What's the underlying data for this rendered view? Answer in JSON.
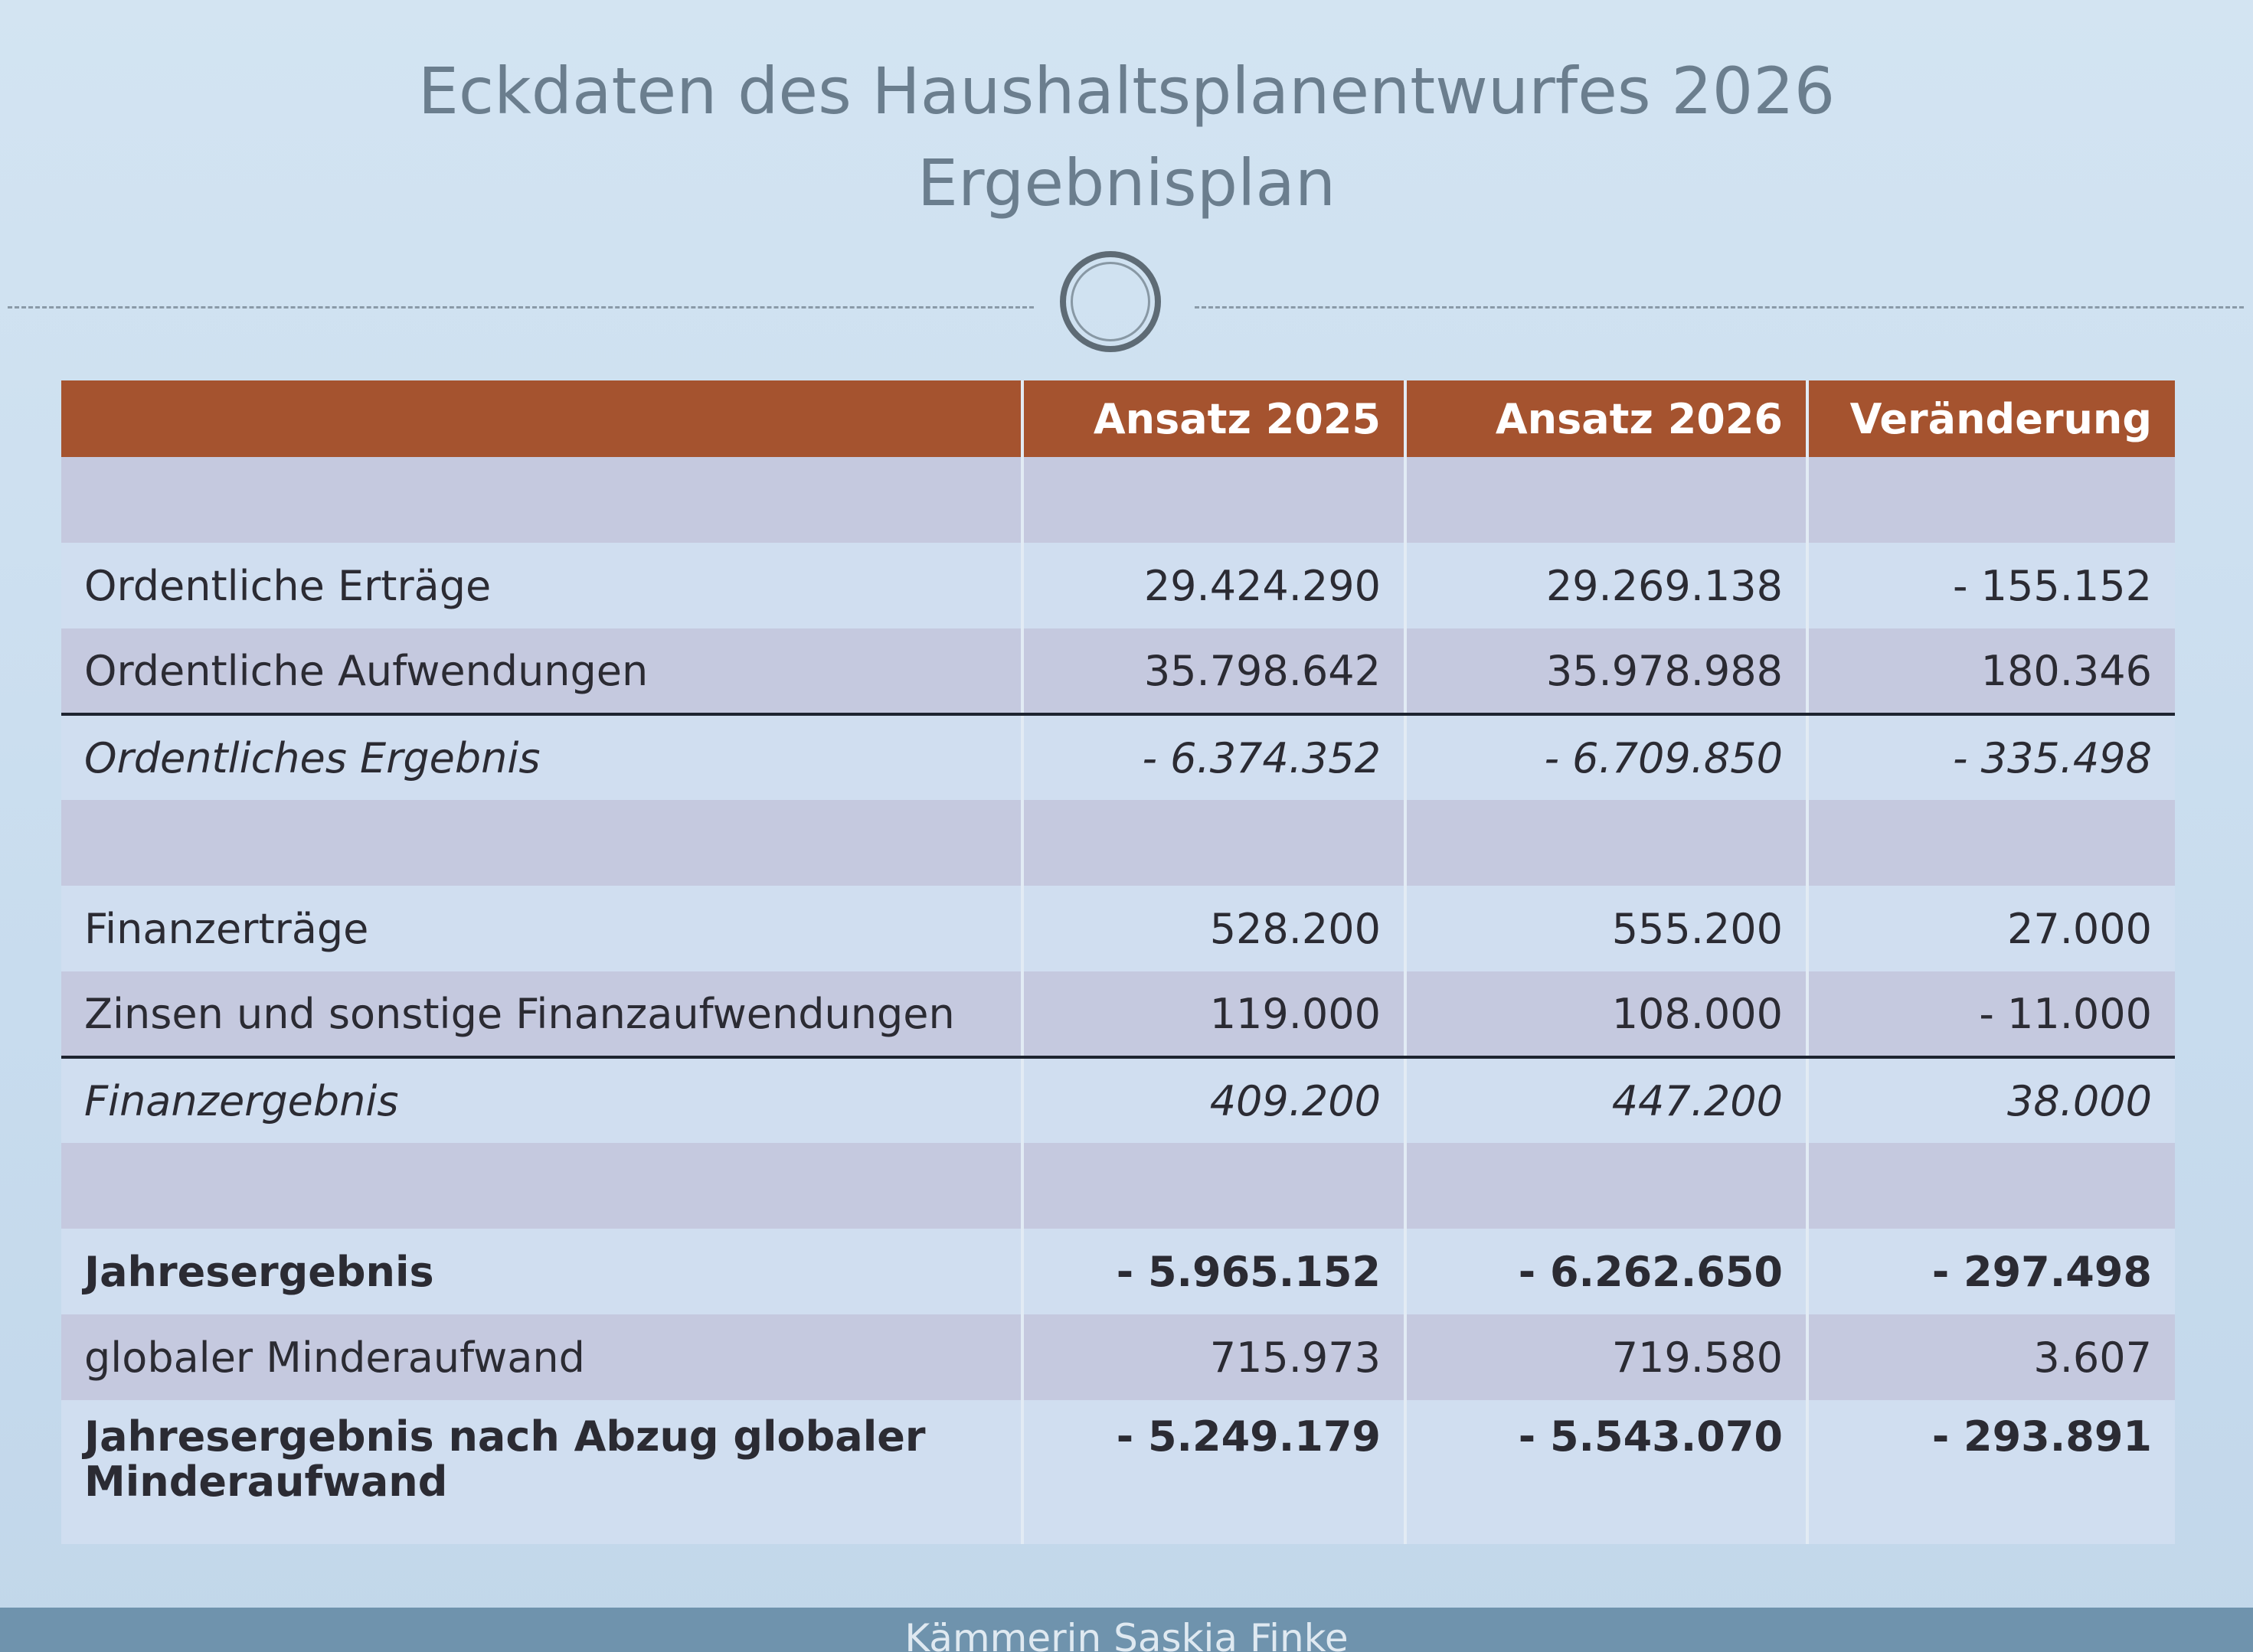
{
  "header": {
    "title": "Eckdaten des Haushaltsplanentwurfes 2026",
    "subtitle": "Ergebnisplan"
  },
  "table": {
    "columns": [
      "Ansatz 2025",
      "Ansatz 2026",
      "Veränderung"
    ],
    "rows": [
      [
        "Ordentliche Erträge",
        "29.424.290",
        "29.269.138",
        "- 155.152"
      ],
      [
        "Ordentliche Aufwendungen",
        "35.798.642",
        "35.978.988",
        "180.346"
      ],
      [
        "Ordentliches Ergebnis",
        "- 6.374.352",
        "- 6.709.850",
        "- 335.498"
      ],
      [
        "Finanzerträge",
        "528.200",
        "555.200",
        "27.000"
      ],
      [
        "Zinsen und sonstige Finanzaufwendungen",
        "119.000",
        "108.000",
        "- 11.000"
      ],
      [
        "Finanzergebnis",
        "409.200",
        "447.200",
        "38.000"
      ],
      [
        "Jahresergebnis",
        "- 5.965.152",
        "- 6.262.650",
        "- 297.498"
      ],
      [
        "globaler Minderaufwand",
        "715.973",
        "719.580",
        "3.607"
      ],
      [
        "Jahresergebnis nach Abzug globaler Minderaufwand",
        "- 5.249.179",
        "- 5.543.070",
        "- 293.891"
      ]
    ]
  },
  "footer": "Kämmerin Saskia Finke"
}
